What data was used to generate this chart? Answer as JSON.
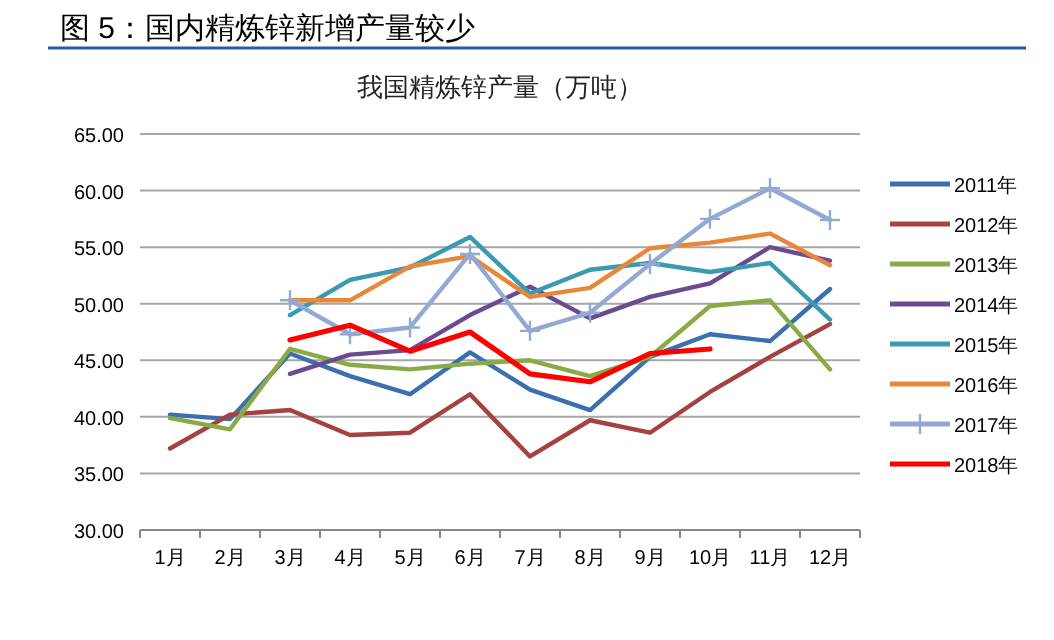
{
  "chart_data": {
    "type": "line",
    "title": "图 5：国内精炼锌新增产量较少",
    "subtitle": "我国精炼锌产量（万吨）",
    "categories": [
      "1月",
      "2月",
      "3月",
      "4月",
      "5月",
      "6月",
      "7月",
      "8月",
      "9月",
      "10月",
      "11月",
      "12月"
    ],
    "ylim": [
      30,
      65
    ],
    "yticks": [
      {
        "value": 30,
        "label": "30.00"
      },
      {
        "value": 35,
        "label": "35.00"
      },
      {
        "value": 40,
        "label": "40.00"
      },
      {
        "value": 45,
        "label": "45.00"
      },
      {
        "value": 50,
        "label": "50.00"
      },
      {
        "value": 55,
        "label": "55.00"
      },
      {
        "value": 60,
        "label": "60.00"
      },
      {
        "value": 65,
        "label": "65.00"
      }
    ],
    "grid": "y",
    "legend": "right",
    "marker": "none",
    "line_style": "solid",
    "series": [
      {
        "name": "2011年",
        "color": "#3a6fb0",
        "values": [
          40.2,
          39.8,
          45.6,
          43.6,
          42.0,
          45.7,
          42.4,
          40.6,
          45.3,
          47.3,
          46.7,
          51.3
        ]
      },
      {
        "name": "2012年",
        "color": "#a3423f",
        "values": [
          37.2,
          40.2,
          40.6,
          38.4,
          38.6,
          42.0,
          36.5,
          39.7,
          38.6,
          42.2,
          45.3,
          48.2
        ]
      },
      {
        "name": "2013年",
        "color": "#8aaa45",
        "values": [
          39.9,
          38.9,
          46.0,
          44.6,
          44.2,
          44.7,
          45.0,
          43.6,
          45.3,
          49.8,
          50.3,
          44.2
        ]
      },
      {
        "name": "2014年",
        "color": "#6a4a90",
        "values": [
          null,
          null,
          43.8,
          45.5,
          45.9,
          49.0,
          51.5,
          48.7,
          50.6,
          51.8,
          55.0,
          53.8
        ]
      },
      {
        "name": "2015年",
        "color": "#3a9bb0",
        "values": [
          null,
          null,
          49.0,
          52.1,
          53.2,
          55.9,
          50.9,
          53.0,
          53.6,
          52.8,
          53.6,
          48.6
        ]
      },
      {
        "name": "2016年",
        "color": "#e8873a",
        "values": [
          null,
          null,
          50.3,
          50.3,
          53.3,
          54.2,
          50.6,
          51.4,
          54.9,
          55.4,
          56.2,
          53.4
        ]
      },
      {
        "name": "2017年",
        "color": "#93a9d4",
        "marker": "cross",
        "values": [
          null,
          null,
          50.3,
          47.3,
          47.9,
          54.4,
          47.6,
          49.2,
          53.5,
          57.5,
          60.2,
          57.4
        ]
      },
      {
        "name": "2018年",
        "color": "#ff0000",
        "values": [
          null,
          null,
          46.8,
          48.1,
          45.8,
          47.5,
          43.8,
          43.1,
          45.6,
          46.0,
          null,
          null
        ]
      }
    ]
  }
}
